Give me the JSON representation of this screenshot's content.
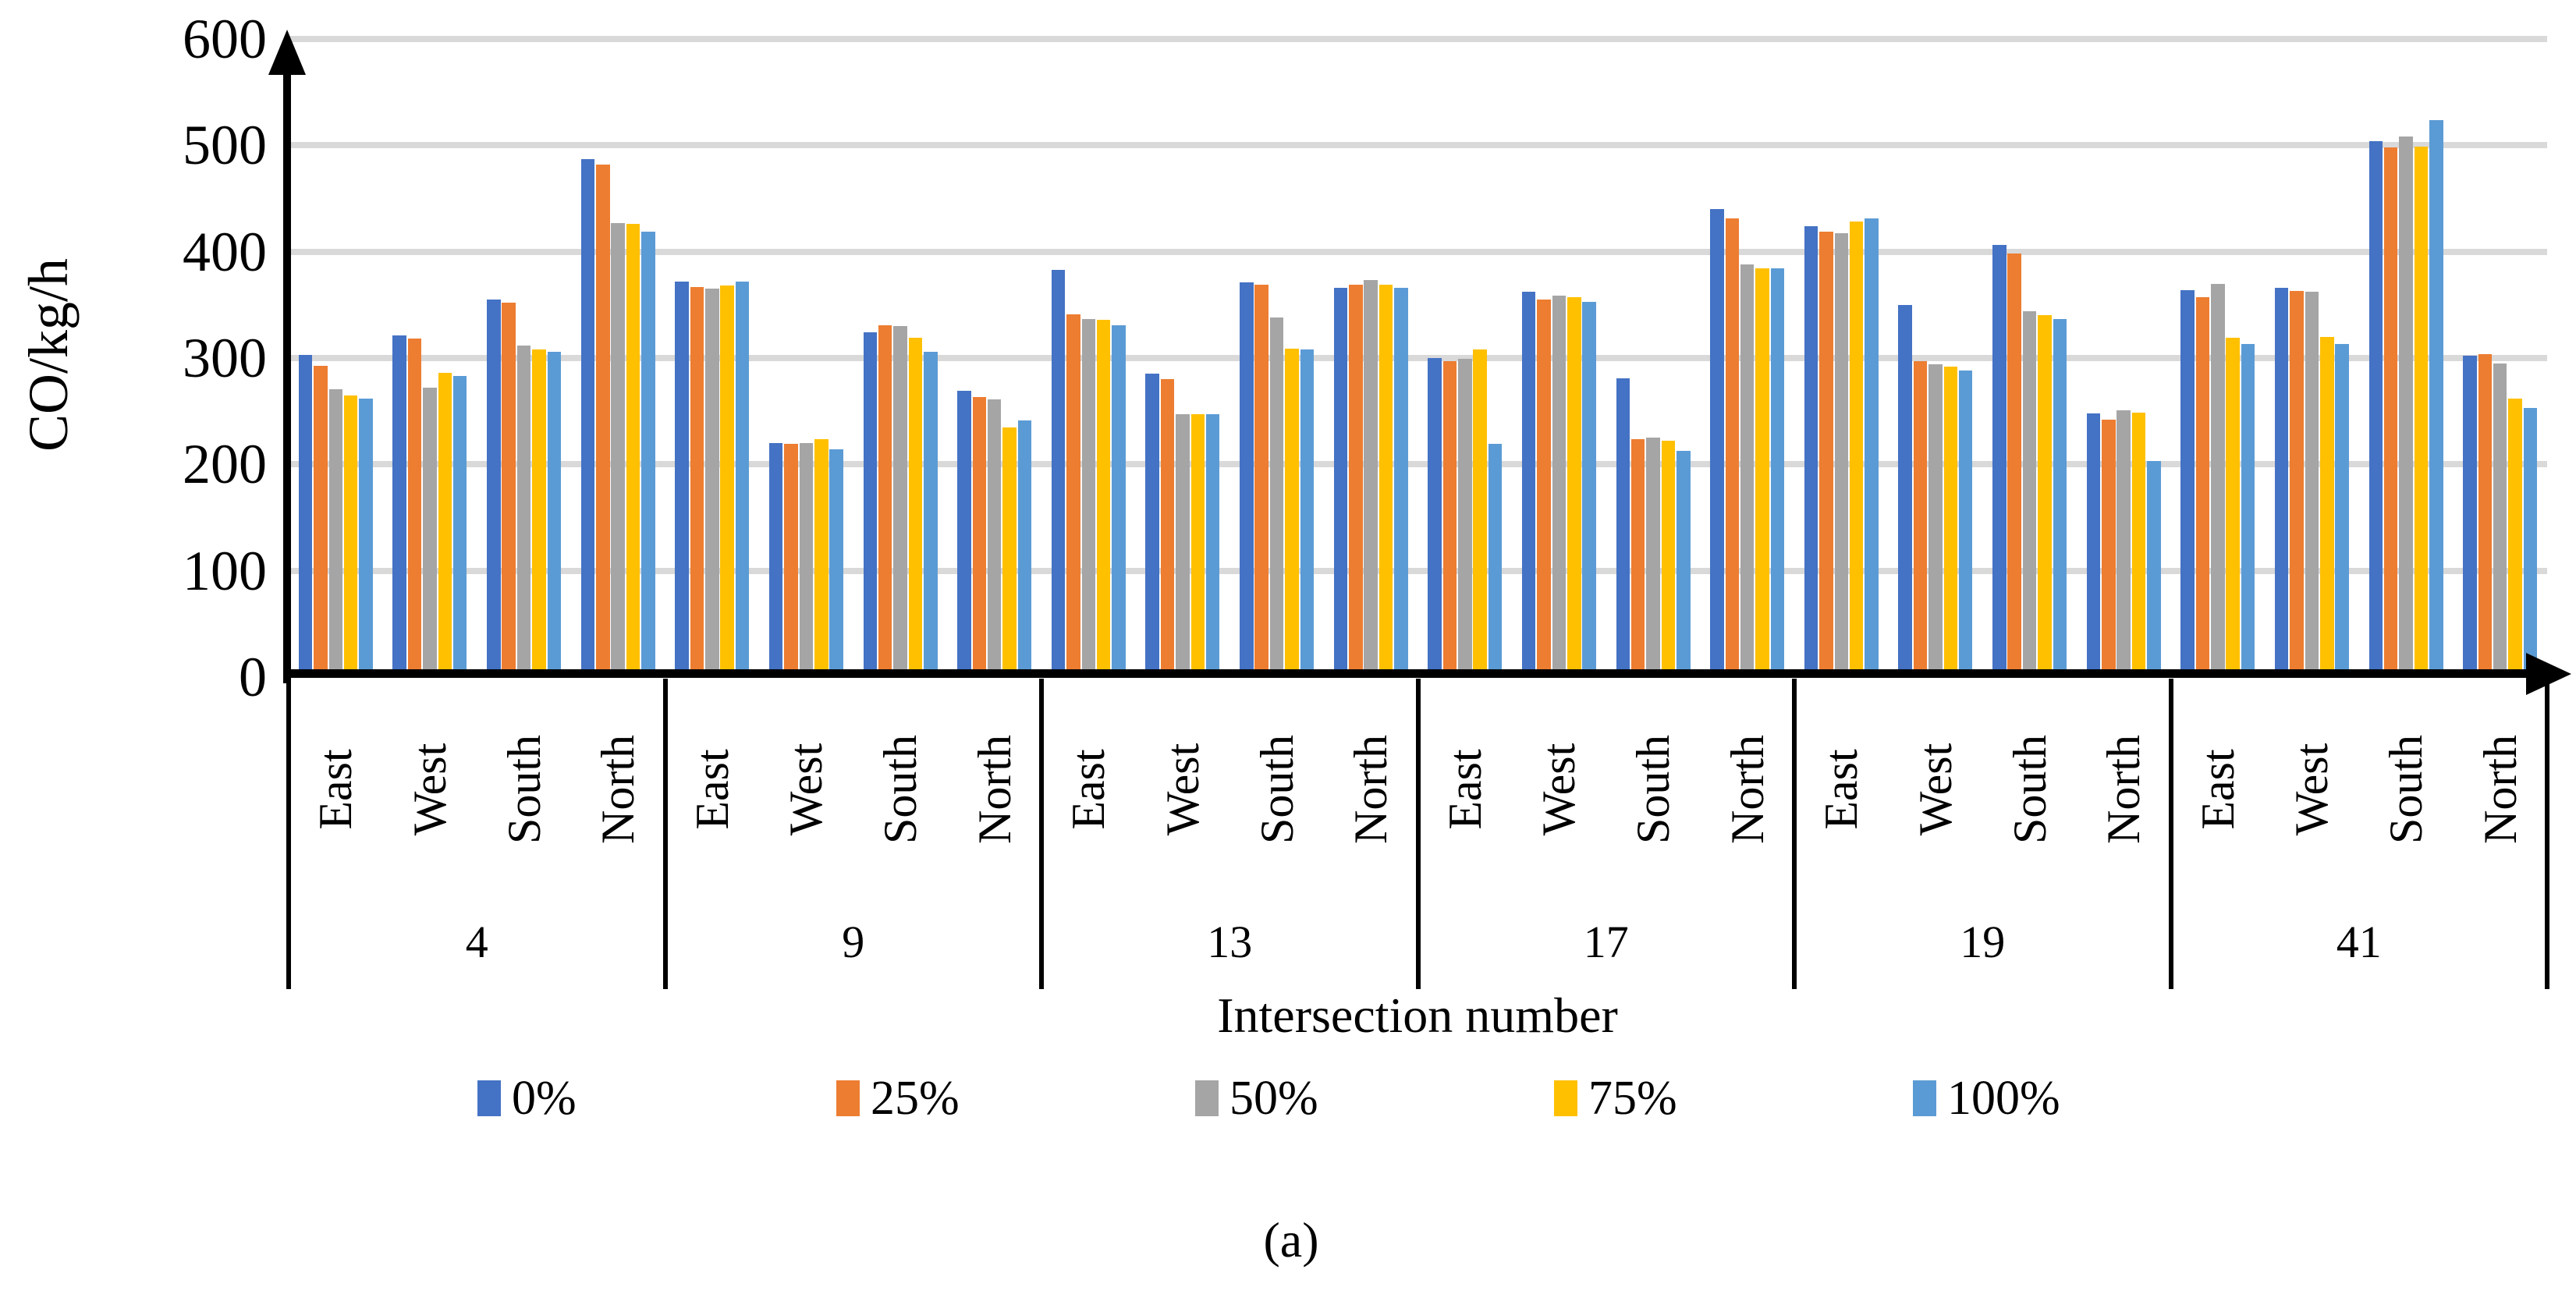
{
  "figure": {
    "caption": "(a)",
    "background": "#ffffff",
    "axis_color": "#000000",
    "gridline_color": "#D9D9D9"
  },
  "chart_data": {
    "type": "bar",
    "title": "",
    "ylabel": "CO/kg/h",
    "xlabel": "Intersection number",
    "ylim": [
      0,
      600
    ],
    "yticks": [
      "0",
      "100",
      "200",
      "300",
      "400",
      "500",
      "600"
    ],
    "grid": "horizontal",
    "legend_position": "bottom",
    "group_labels": [
      "4",
      "9",
      "13",
      "17",
      "19",
      "41"
    ],
    "subgroup_labels": [
      "East",
      "West",
      "South",
      "North"
    ],
    "series": [
      {
        "name": "0%",
        "color": "#4472C4",
        "values": [
          [
            303,
            321,
            355,
            487
          ],
          [
            372,
            220,
            324,
            269
          ],
          [
            383,
            285,
            371,
            366
          ],
          [
            300,
            362,
            281,
            440
          ],
          [
            424,
            350,
            406,
            248
          ],
          [
            364,
            366,
            504,
            302
          ]
        ]
      },
      {
        "name": "25%",
        "color": "#ED7D31",
        "values": [
          [
            293,
            318,
            352,
            482
          ],
          [
            367,
            219,
            331,
            263
          ],
          [
            341,
            280,
            369,
            369
          ],
          [
            297,
            355,
            224,
            431
          ],
          [
            419,
            297,
            398,
            242
          ],
          [
            357,
            363,
            498,
            304
          ]
        ]
      },
      {
        "name": "50%",
        "color": "#A5A5A5",
        "values": [
          [
            271,
            272,
            312,
            427
          ],
          [
            365,
            220,
            330,
            261
          ],
          [
            337,
            247,
            338,
            373
          ],
          [
            299,
            359,
            225,
            388
          ],
          [
            417,
            294,
            344,
            251
          ],
          [
            370,
            362,
            508,
            295
          ]
        ]
      },
      {
        "name": "75%",
        "color": "#FFC000",
        "values": [
          [
            265,
            286,
            308,
            426
          ],
          [
            368,
            224,
            319,
            235
          ],
          [
            336,
            247,
            309,
            369
          ],
          [
            308,
            357,
            222,
            384
          ],
          [
            428,
            292,
            340,
            249
          ],
          [
            319,
            320,
            499,
            262
          ]
        ]
      },
      {
        "name": "100%",
        "color": "#5B9BD5",
        "values": [
          [
            262,
            283,
            306,
            419
          ],
          [
            372,
            214,
            306,
            241
          ],
          [
            331,
            247,
            308,
            366
          ],
          [
            219,
            353,
            213,
            384
          ],
          [
            431,
            288,
            337,
            203
          ],
          [
            313,
            313,
            524,
            253
          ]
        ]
      }
    ]
  }
}
